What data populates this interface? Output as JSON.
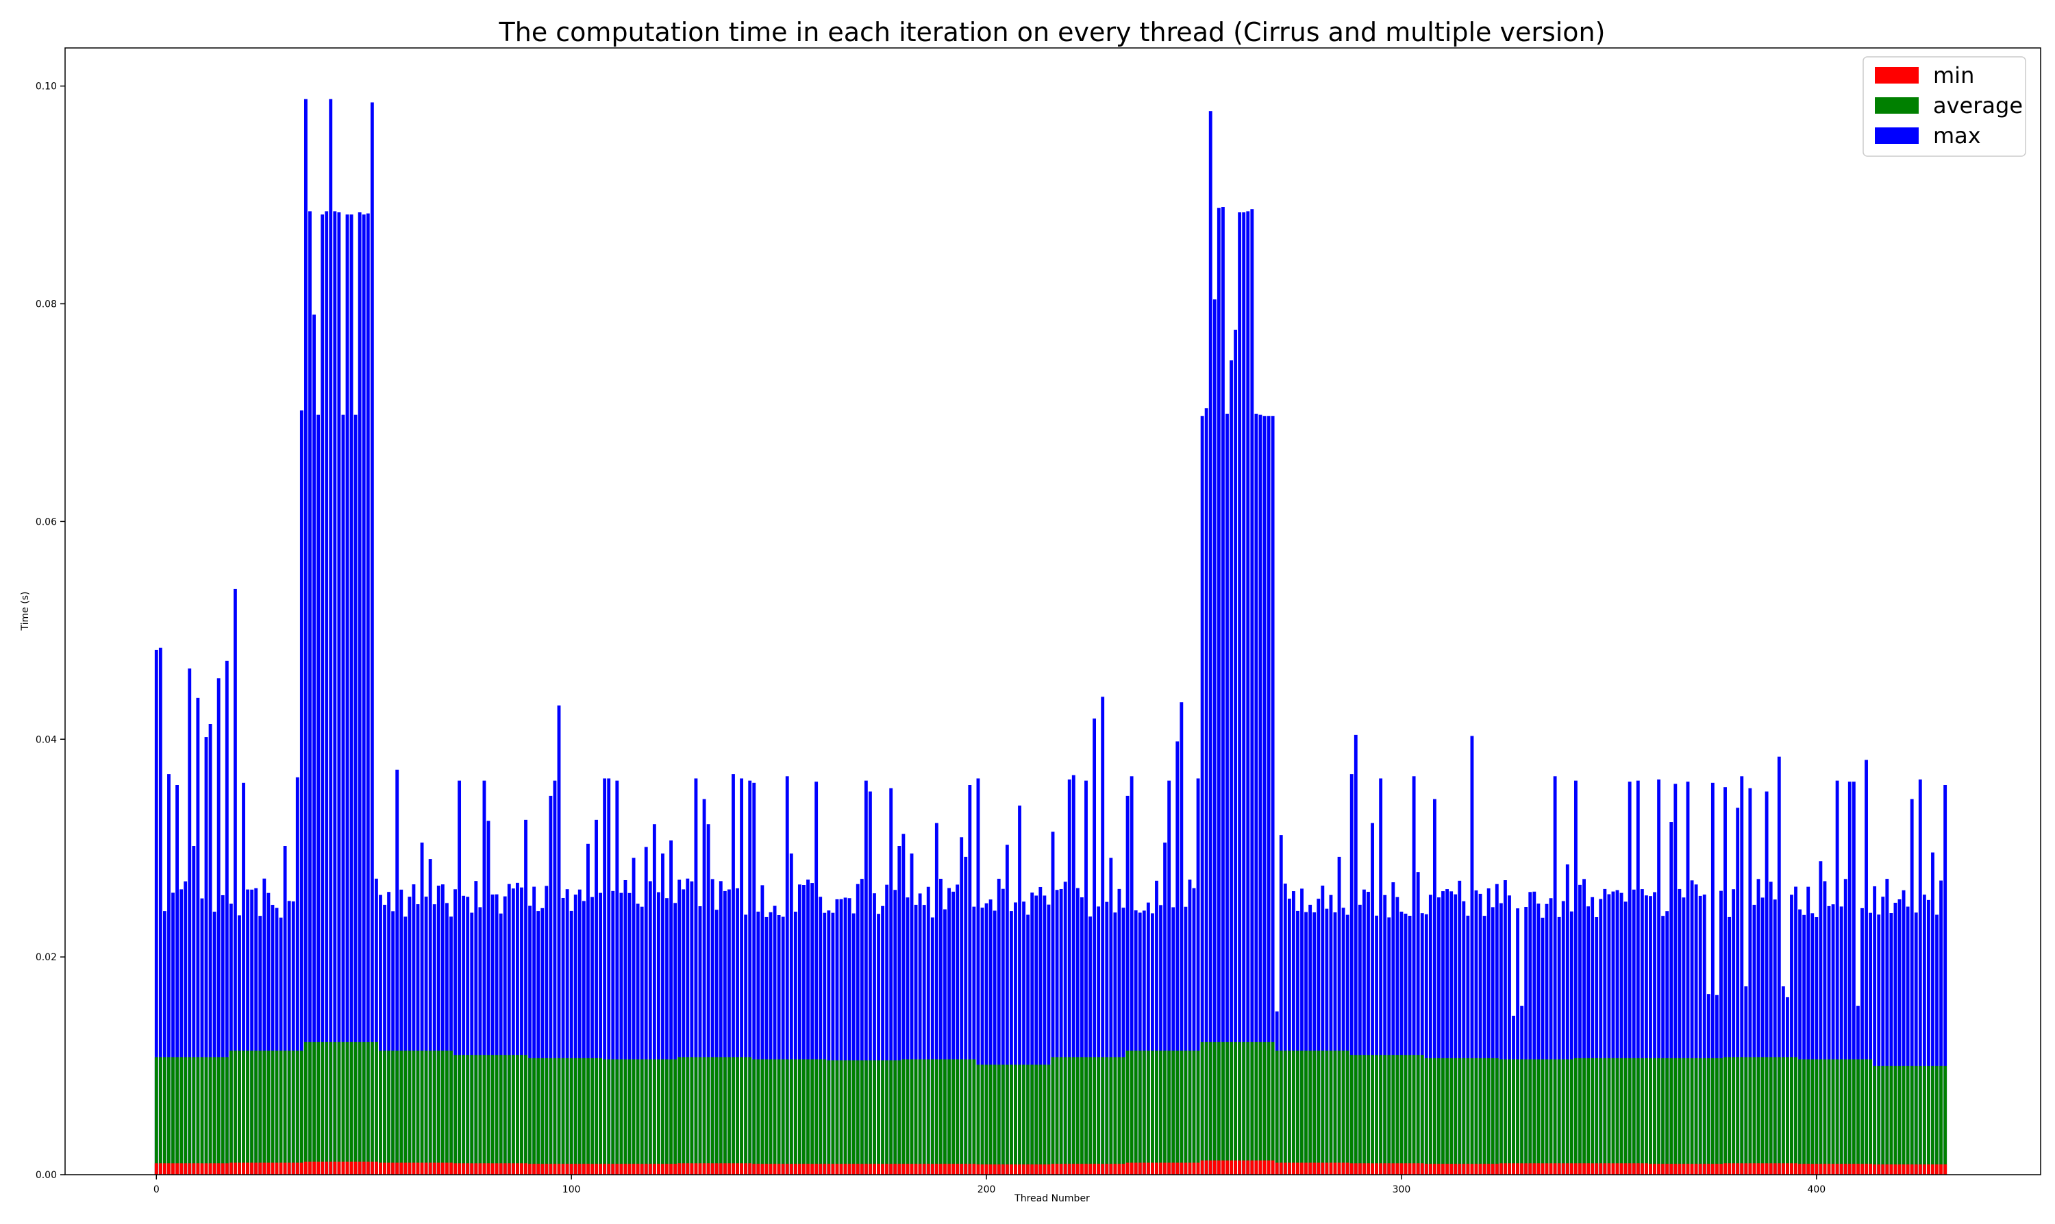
{
  "chart_data": {
    "type": "bar",
    "stacked": false,
    "title": "The computation time in each iteration on every thread (Cirrus and multiple version)",
    "xlabel": "Thread Number",
    "ylabel": "Time (s)",
    "xlim": [
      -22,
      454
    ],
    "ylim": [
      0,
      0.1035
    ],
    "xticks": [
      0,
      100,
      200,
      300,
      400
    ],
    "yticks": [
      0.0,
      0.02,
      0.04,
      0.06,
      0.08,
      0.1
    ],
    "ytick_labels": [
      "0.00",
      "0.02",
      "0.04",
      "0.06",
      "0.08",
      "0.10"
    ],
    "grid": false,
    "legend_position": "top-right",
    "series": [
      {
        "name": "min",
        "color": "#ff0000",
        "segments": [
          {
            "from": 0,
            "to": 18,
            "value": 0.00105
          },
          {
            "from": 18,
            "to": 36,
            "value": 0.0011
          },
          {
            "from": 36,
            "to": 54,
            "value": 0.0012
          },
          {
            "from": 54,
            "to": 72,
            "value": 0.0011
          },
          {
            "from": 72,
            "to": 90,
            "value": 0.00105
          },
          {
            "from": 90,
            "to": 108,
            "value": 0.001
          },
          {
            "from": 108,
            "to": 126,
            "value": 0.001
          },
          {
            "from": 126,
            "to": 144,
            "value": 0.00105
          },
          {
            "from": 144,
            "to": 162,
            "value": 0.001
          },
          {
            "from": 162,
            "to": 180,
            "value": 0.001
          },
          {
            "from": 180,
            "to": 198,
            "value": 0.001
          },
          {
            "from": 198,
            "to": 216,
            "value": 0.00095
          },
          {
            "from": 216,
            "to": 234,
            "value": 0.001
          },
          {
            "from": 234,
            "to": 252,
            "value": 0.0011
          },
          {
            "from": 252,
            "to": 270,
            "value": 0.0013
          },
          {
            "from": 270,
            "to": 288,
            "value": 0.0011
          },
          {
            "from": 288,
            "to": 306,
            "value": 0.00105
          },
          {
            "from": 306,
            "to": 324,
            "value": 0.001
          },
          {
            "from": 324,
            "to": 342,
            "value": 0.00105
          },
          {
            "from": 342,
            "to": 360,
            "value": 0.00105
          },
          {
            "from": 360,
            "to": 378,
            "value": 0.001
          },
          {
            "from": 378,
            "to": 396,
            "value": 0.00105
          },
          {
            "from": 396,
            "to": 414,
            "value": 0.001
          },
          {
            "from": 414,
            "to": 432,
            "value": 0.00095
          }
        ]
      },
      {
        "name": "average",
        "color": "#008000",
        "segments": [
          {
            "from": 0,
            "to": 18,
            "value": 0.0108
          },
          {
            "from": 18,
            "to": 36,
            "value": 0.0114
          },
          {
            "from": 36,
            "to": 54,
            "value": 0.0122
          },
          {
            "from": 54,
            "to": 72,
            "value": 0.0114
          },
          {
            "from": 72,
            "to": 90,
            "value": 0.011
          },
          {
            "from": 90,
            "to": 108,
            "value": 0.0107
          },
          {
            "from": 108,
            "to": 126,
            "value": 0.0106
          },
          {
            "from": 126,
            "to": 144,
            "value": 0.0108
          },
          {
            "from": 144,
            "to": 162,
            "value": 0.0106
          },
          {
            "from": 162,
            "to": 180,
            "value": 0.0105
          },
          {
            "from": 180,
            "to": 198,
            "value": 0.0106
          },
          {
            "from": 198,
            "to": 216,
            "value": 0.0101
          },
          {
            "from": 216,
            "to": 234,
            "value": 0.0108
          },
          {
            "from": 234,
            "to": 252,
            "value": 0.0114
          },
          {
            "from": 252,
            "to": 270,
            "value": 0.0122
          },
          {
            "from": 270,
            "to": 288,
            "value": 0.0114
          },
          {
            "from": 288,
            "to": 306,
            "value": 0.011
          },
          {
            "from": 306,
            "to": 324,
            "value": 0.0107
          },
          {
            "from": 324,
            "to": 342,
            "value": 0.0106
          },
          {
            "from": 342,
            "to": 360,
            "value": 0.0107
          },
          {
            "from": 360,
            "to": 378,
            "value": 0.0107
          },
          {
            "from": 378,
            "to": 396,
            "value": 0.0108
          },
          {
            "from": 396,
            "to": 414,
            "value": 0.0106
          },
          {
            "from": 414,
            "to": 432,
            "value": 0.01
          }
        ]
      },
      {
        "name": "max",
        "color": "#0000ff",
        "points": [
          [
            0,
            0.0482
          ],
          [
            1,
            0.0484
          ],
          [
            3,
            0.0368
          ],
          [
            5,
            0.0358
          ],
          [
            8,
            0.0465
          ],
          [
            9,
            0.0302
          ],
          [
            10,
            0.0438
          ],
          [
            12,
            0.0402
          ],
          [
            13,
            0.0414
          ],
          [
            15,
            0.0456
          ],
          [
            17,
            0.0472
          ],
          [
            19,
            0.0538
          ],
          [
            21,
            0.036
          ],
          [
            22,
            0.0262
          ],
          [
            26,
            0.0272
          ],
          [
            31,
            0.0302
          ],
          [
            34,
            0.0365
          ],
          [
            35,
            0.0702
          ],
          [
            36,
            0.0988
          ],
          [
            37,
            0.0885
          ],
          [
            38,
            0.079
          ],
          [
            39,
            0.0698
          ],
          [
            40,
            0.0882
          ],
          [
            41,
            0.0885
          ],
          [
            42,
            0.0988
          ],
          [
            43,
            0.0885
          ],
          [
            44,
            0.0884
          ],
          [
            45,
            0.0698
          ],
          [
            46,
            0.0882
          ],
          [
            47,
            0.0882
          ],
          [
            48,
            0.0698
          ],
          [
            49,
            0.0884
          ],
          [
            50,
            0.0882
          ],
          [
            51,
            0.0883
          ],
          [
            52,
            0.0985
          ],
          [
            58,
            0.0372
          ],
          [
            64,
            0.0305
          ],
          [
            66,
            0.029
          ],
          [
            73,
            0.0362
          ],
          [
            79,
            0.0362
          ],
          [
            80,
            0.0325
          ],
          [
            85,
            0.0267
          ],
          [
            89,
            0.0326
          ],
          [
            95,
            0.0348
          ],
          [
            96,
            0.0362
          ],
          [
            97,
            0.0431
          ],
          [
            104,
            0.0304
          ],
          [
            106,
            0.0326
          ],
          [
            108,
            0.0364
          ],
          [
            109,
            0.0364
          ],
          [
            111,
            0.0362
          ],
          [
            115,
            0.0291
          ],
          [
            118,
            0.0301
          ],
          [
            120,
            0.0322
          ],
          [
            122,
            0.0295
          ],
          [
            124,
            0.0307
          ],
          [
            128,
            0.0272
          ],
          [
            130,
            0.0364
          ],
          [
            132,
            0.0345
          ],
          [
            133,
            0.0322
          ],
          [
            139,
            0.0368
          ],
          [
            141,
            0.0364
          ],
          [
            143,
            0.0362
          ],
          [
            144,
            0.036
          ],
          [
            152,
            0.0366
          ],
          [
            153,
            0.0295
          ],
          [
            159,
            0.0361
          ],
          [
            171,
            0.0362
          ],
          [
            172,
            0.0352
          ],
          [
            177,
            0.0355
          ],
          [
            179,
            0.0302
          ],
          [
            180,
            0.0313
          ],
          [
            182,
            0.0295
          ],
          [
            188,
            0.0323
          ],
          [
            194,
            0.031
          ],
          [
            195,
            0.0292
          ],
          [
            196,
            0.0358
          ],
          [
            198,
            0.0364
          ],
          [
            205,
            0.0303
          ],
          [
            208,
            0.0339
          ],
          [
            216,
            0.0315
          ],
          [
            220,
            0.0363
          ],
          [
            221,
            0.0367
          ],
          [
            224,
            0.0362
          ],
          [
            226,
            0.0419
          ],
          [
            228,
            0.0439
          ],
          [
            230,
            0.0291
          ],
          [
            234,
            0.0348
          ],
          [
            235,
            0.0366
          ],
          [
            243,
            0.0305
          ],
          [
            244,
            0.0362
          ],
          [
            246,
            0.0398
          ],
          [
            247,
            0.0434
          ],
          [
            249,
            0.0271
          ],
          [
            251,
            0.0364
          ],
          [
            252,
            0.0697
          ],
          [
            253,
            0.0704
          ],
          [
            254,
            0.0977
          ],
          [
            255,
            0.0804
          ],
          [
            256,
            0.0888
          ],
          [
            257,
            0.0889
          ],
          [
            258,
            0.0699
          ],
          [
            259,
            0.0748
          ],
          [
            260,
            0.0776
          ],
          [
            261,
            0.0884
          ],
          [
            262,
            0.0884
          ],
          [
            263,
            0.0885
          ],
          [
            264,
            0.0887
          ],
          [
            265,
            0.0699
          ],
          [
            266,
            0.0698
          ],
          [
            267,
            0.0697
          ],
          [
            268,
            0.0697
          ],
          [
            269,
            0.0697
          ],
          [
            270,
            0.015
          ],
          [
            271,
            0.0312
          ],
          [
            285,
            0.0292
          ],
          [
            288,
            0.0368
          ],
          [
            289,
            0.0404
          ],
          [
            293,
            0.0323
          ],
          [
            295,
            0.0364
          ],
          [
            303,
            0.0366
          ],
          [
            304,
            0.0278
          ],
          [
            308,
            0.0345
          ],
          [
            317,
            0.0403
          ],
          [
            327,
            0.0146
          ],
          [
            329,
            0.0155
          ],
          [
            330,
            0.0246
          ],
          [
            332,
            0.026
          ],
          [
            337,
            0.0366
          ],
          [
            340,
            0.0285
          ],
          [
            342,
            0.0362
          ],
          [
            355,
            0.0361
          ],
          [
            357,
            0.0362
          ],
          [
            362,
            0.0363
          ],
          [
            365,
            0.0324
          ],
          [
            366,
            0.0359
          ],
          [
            369,
            0.0361
          ],
          [
            374,
            0.0166
          ],
          [
            375,
            0.036
          ],
          [
            376,
            0.0165
          ],
          [
            378,
            0.0356
          ],
          [
            381,
            0.0337
          ],
          [
            382,
            0.0366
          ],
          [
            383,
            0.0173
          ],
          [
            384,
            0.0355
          ],
          [
            388,
            0.0352
          ],
          [
            391,
            0.0384
          ],
          [
            392,
            0.0173
          ],
          [
            393,
            0.0163
          ],
          [
            401,
            0.0288
          ],
          [
            405,
            0.0362
          ],
          [
            408,
            0.0361
          ],
          [
            409,
            0.0361
          ],
          [
            410,
            0.0155
          ],
          [
            412,
            0.0381
          ],
          [
            423,
            0.0345
          ],
          [
            425,
            0.0363
          ],
          [
            428,
            0.0296
          ],
          [
            431,
            0.0358
          ]
        ]
      }
    ]
  }
}
